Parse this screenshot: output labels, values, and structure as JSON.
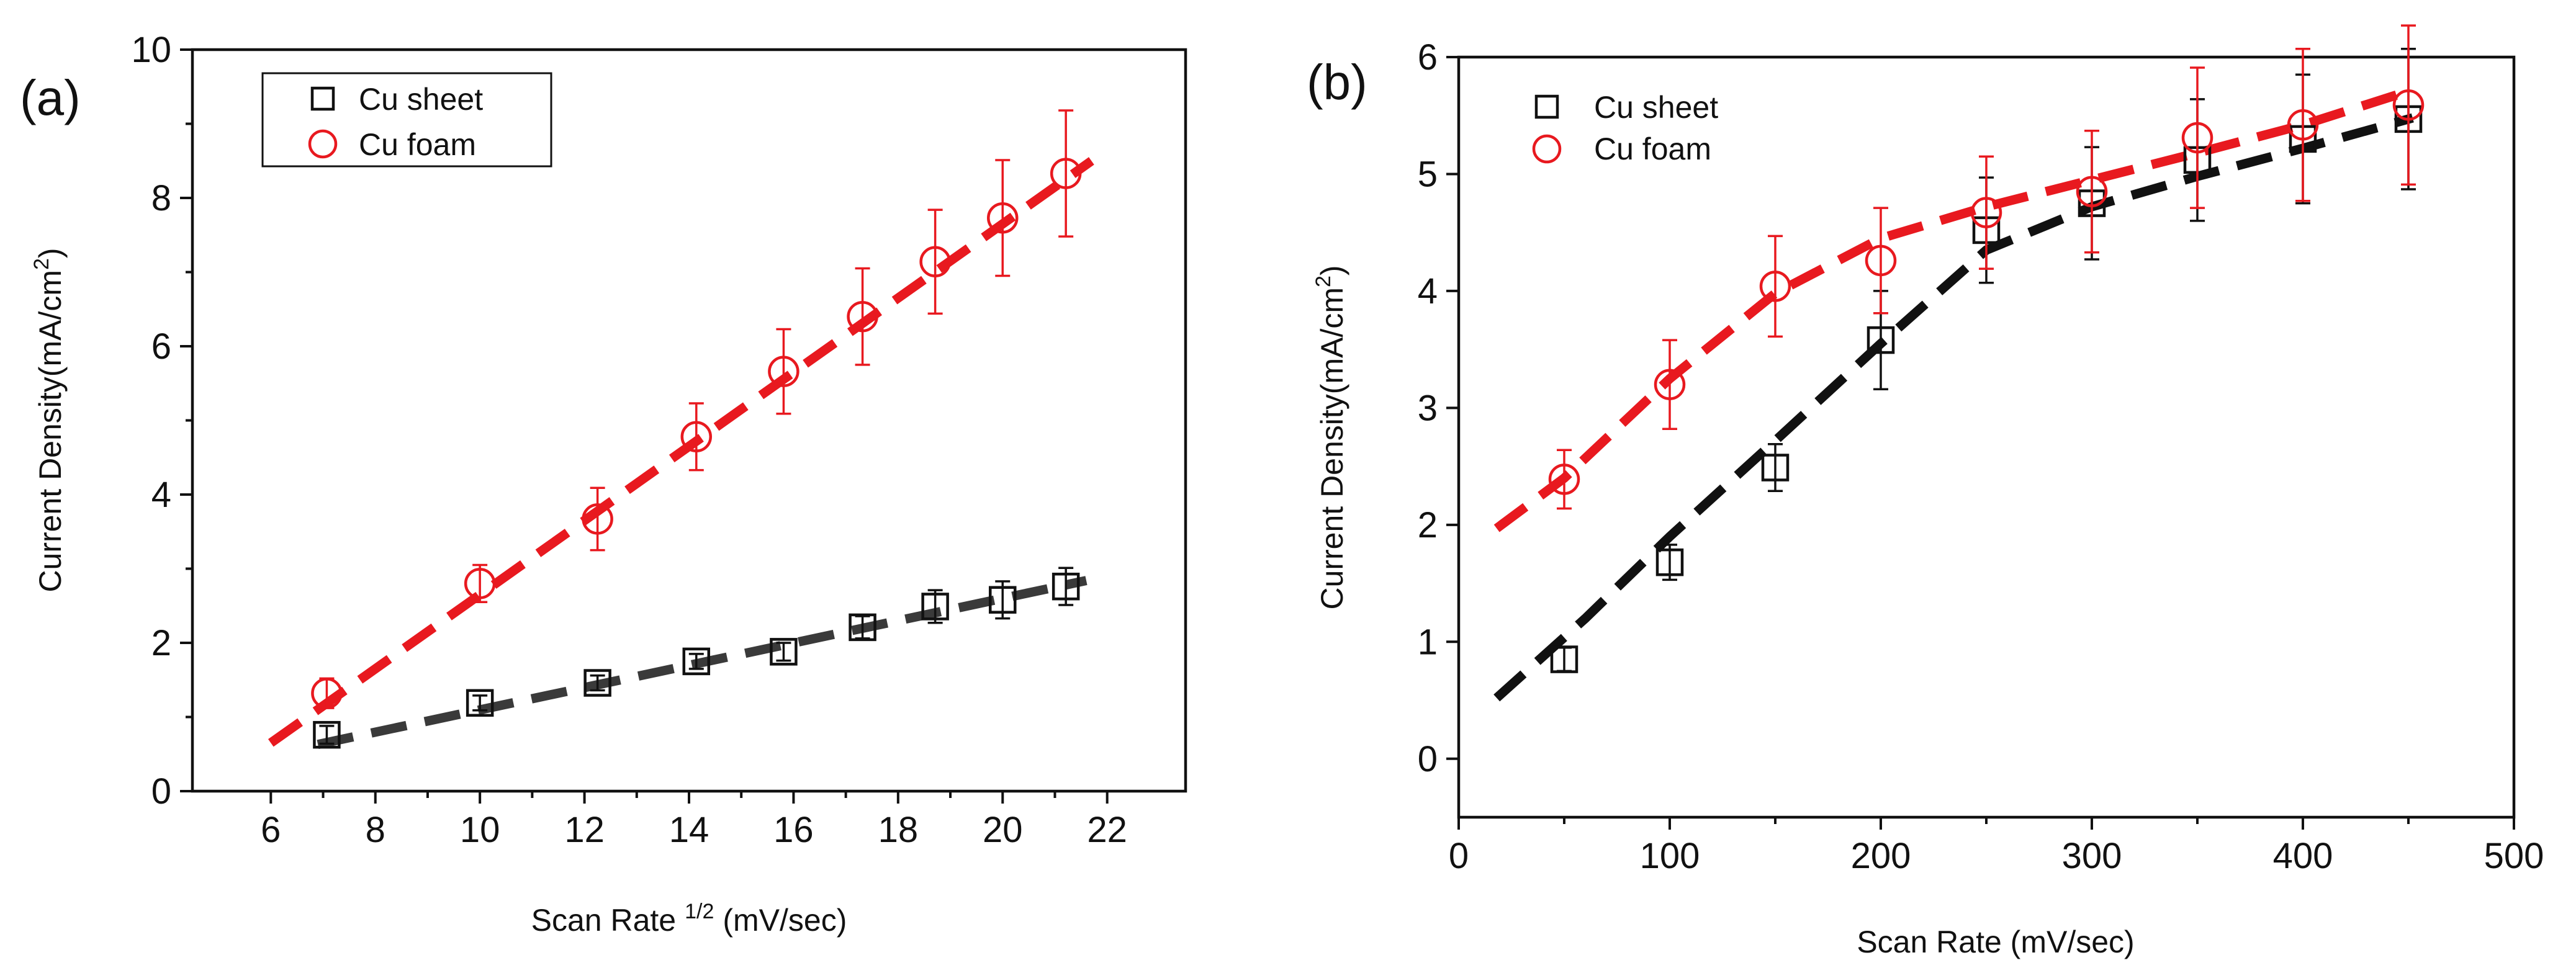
{
  "chart_data": [
    {
      "type": "scatter",
      "panel_label": "(a)",
      "title": "",
      "xlabel": "Scan Rate",
      "xlabel_superscript": "1/2",
      "xlabel_suffix": "(mV/sec)",
      "ylabel": "Current Density(mA/cm",
      "ylabel_superscript": "2",
      "ylabel_suffix": ")",
      "xlim": [
        4.5,
        23.5
      ],
      "ylim": [
        0,
        10
      ],
      "xticks": [
        6,
        8,
        10,
        12,
        14,
        16,
        18,
        20,
        22
      ],
      "yticks": [
        0,
        2,
        4,
        6,
        8,
        10
      ],
      "grid": false,
      "legend_position": "top-left",
      "series": [
        {
          "name": "Cu sheet",
          "marker": "square",
          "color": "#111111",
          "x": [
            7.07,
            10.0,
            12.25,
            14.14,
            15.81,
            17.32,
            18.71,
            20.0,
            21.21
          ],
          "y": [
            0.76,
            1.19,
            1.46,
            1.75,
            1.88,
            2.21,
            2.49,
            2.58,
            2.76
          ],
          "err": [
            0.12,
            0.1,
            0.1,
            0.1,
            0.12,
            0.15,
            0.22,
            0.25,
            0.25
          ],
          "fit": {
            "color": "#3a3a3a",
            "x": [
              6.9,
              21.6
            ],
            "y": [
              0.63,
              2.84
            ]
          }
        },
        {
          "name": "Cu foam",
          "marker": "circle",
          "color": "#e8191f",
          "x": [
            7.07,
            10.0,
            12.25,
            14.14,
            15.81,
            17.32,
            18.71,
            20.0,
            21.21
          ],
          "y": [
            1.32,
            2.8,
            3.67,
            4.78,
            5.66,
            6.4,
            7.14,
            7.73,
            8.33
          ],
          "err": [
            0.2,
            0.25,
            0.42,
            0.45,
            0.57,
            0.65,
            0.7,
            0.78,
            0.85
          ],
          "fit": {
            "color": "#e8191f",
            "x": [
              6.0,
              21.7
            ],
            "y": [
              0.65,
              8.5
            ]
          }
        }
      ]
    },
    {
      "type": "scatter",
      "panel_label": "(b)",
      "title": "",
      "xlabel": "Scan Rate (mV/sec)",
      "ylabel": "Current Density(mA/cm",
      "ylabel_superscript": "2",
      "ylabel_suffix": ")",
      "xlim": [
        0,
        500
      ],
      "ylim": [
        -0.5,
        6
      ],
      "xticks": [
        0,
        100,
        200,
        300,
        400,
        500
      ],
      "yticks": [
        0,
        1,
        2,
        3,
        4,
        5,
        6
      ],
      "grid": false,
      "legend_position": "top-left",
      "series": [
        {
          "name": "Cu sheet",
          "marker": "square",
          "color": "#111111",
          "x": [
            50,
            100,
            150,
            200,
            250,
            300,
            350,
            400,
            450
          ],
          "y": [
            0.85,
            1.68,
            2.49,
            3.58,
            4.52,
            4.75,
            5.12,
            5.3,
            5.47
          ],
          "err": [
            0.1,
            0.15,
            0.2,
            0.42,
            0.45,
            0.48,
            0.52,
            0.55,
            0.6
          ],
          "fit": {
            "color": "#111111",
            "x": [
              18,
              60,
              100,
              150,
              200,
              250,
              300,
              350,
              400,
              452
            ],
            "y": [
              0.52,
              1.2,
              1.9,
              2.72,
              3.55,
              4.35,
              4.72,
              4.98,
              5.22,
              5.48
            ]
          }
        },
        {
          "name": "Cu foam",
          "marker": "circle",
          "color": "#e8191f",
          "x": [
            50,
            100,
            150,
            200,
            250,
            300,
            350,
            400,
            450
          ],
          "y": [
            2.39,
            3.2,
            4.04,
            4.26,
            4.67,
            4.85,
            5.31,
            5.42,
            5.59
          ],
          "err": [
            0.25,
            0.38,
            0.43,
            0.45,
            0.48,
            0.52,
            0.6,
            0.65,
            0.68
          ],
          "fit": {
            "color": "#e8191f",
            "x": [
              18,
              50,
              100,
              150,
              200,
              250,
              300,
              350,
              400,
              452
            ],
            "y": [
              1.97,
              2.4,
              3.25,
              3.98,
              4.45,
              4.72,
              4.95,
              5.18,
              5.42,
              5.72
            ]
          }
        }
      ]
    }
  ]
}
